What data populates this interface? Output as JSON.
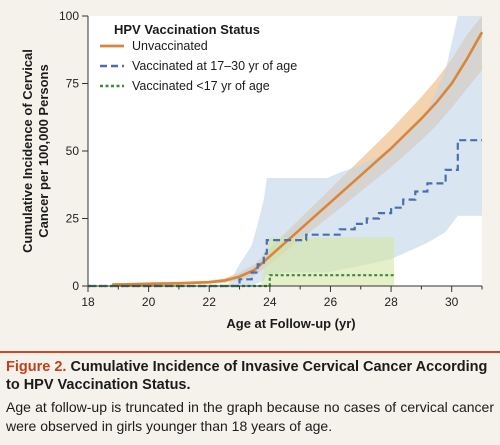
{
  "figure": {
    "label": "Figure 2.",
    "title": "Cumulative Incidence of Invasive Cervical Cancer According to HPV Vaccination Status.",
    "caption": "Age at follow-up is truncated in the graph because no cases of cervical cancer were observed in girls younger than 18 years of age."
  },
  "chart_data": {
    "type": "line",
    "title": "",
    "xlabel": "Age at Follow-up (yr)",
    "ylabel": "Cumulative Incidence of Cervical Cancer per 100,000 Persons",
    "xlim": [
      18,
      31
    ],
    "ylim": [
      0,
      100
    ],
    "xticks": [
      18,
      20,
      22,
      24,
      26,
      28,
      30
    ],
    "yticks": [
      0,
      25,
      50,
      75,
      100
    ],
    "grid": false,
    "legend": {
      "title": "HPV Vaccination Status",
      "position": "top-left"
    },
    "series": [
      {
        "name": "Unvaccinated",
        "style": "solid",
        "color": "#d9853b",
        "band_color": "#f0c594",
        "x": [
          18.8,
          20,
          21,
          22,
          22.5,
          23,
          23.5,
          24,
          24.5,
          25,
          25.5,
          26,
          26.5,
          27,
          27.5,
          28,
          28.5,
          29,
          29.5,
          30,
          30.5,
          31
        ],
        "y": [
          0.5,
          0.8,
          1.0,
          1.4,
          2.0,
          3.5,
          6.0,
          11.0,
          16.0,
          21.0,
          26.0,
          31.0,
          36.0,
          41.0,
          46.0,
          51.0,
          56.5,
          62.0,
          68.0,
          75.0,
          84.0,
          94.0
        ],
        "lower": [
          0.1,
          0.3,
          0.5,
          0.8,
          1.2,
          2.2,
          4.0,
          8.0,
          12.5,
          17.0,
          21.5,
          26.0,
          30.5,
          35.0,
          39.5,
          44.0,
          49.0,
          54.0,
          59.5,
          66.0,
          73.0,
          80.0
        ],
        "upper": [
          1.0,
          1.4,
          1.6,
          2.0,
          2.8,
          5.0,
          8.0,
          14.0,
          19.5,
          25.0,
          30.5,
          36.0,
          41.5,
          47.0,
          52.5,
          58.0,
          64.0,
          70.0,
          76.5,
          84.0,
          93.0,
          100.0
        ]
      },
      {
        "name": "Vaccinated at 17–30 yr of age",
        "style": "dashed",
        "color": "#4a6fb0",
        "band_color": "#bfd3e6",
        "x": [
          18,
          22.6,
          23.0,
          23.4,
          23.6,
          23.8,
          23.9,
          24.5,
          25.2,
          25.9,
          26.3,
          26.8,
          27.2,
          27.6,
          28.0,
          28.4,
          28.8,
          29.2,
          29.8,
          30.2,
          31.0
        ],
        "y": [
          0,
          0,
          2.5,
          5,
          8,
          12,
          17,
          17,
          19,
          19,
          21,
          23,
          25,
          27,
          29,
          32,
          35,
          38,
          43,
          54,
          54
        ],
        "lower": [
          0,
          0,
          0,
          0,
          1,
          2,
          4,
          5,
          5,
          5,
          6,
          7,
          8,
          9,
          10,
          12,
          14,
          16,
          20,
          26,
          26
        ],
        "upper": [
          0,
          0,
          8,
          15,
          23,
          32,
          40,
          40,
          40,
          40,
          42,
          44,
          46,
          48,
          51,
          55,
          60,
          65,
          80,
          100,
          100
        ]
      },
      {
        "name": "Vaccinated <17 yr of age",
        "style": "dotted",
        "color": "#3b8a3b",
        "band_color": "#d3e6a5",
        "x": [
          18,
          23.7,
          24.0,
          28.1
        ],
        "y": [
          0,
          0,
          4,
          4
        ],
        "lower": [
          0,
          0,
          0,
          0
        ],
        "upper": [
          0,
          0,
          18,
          18
        ]
      }
    ]
  }
}
